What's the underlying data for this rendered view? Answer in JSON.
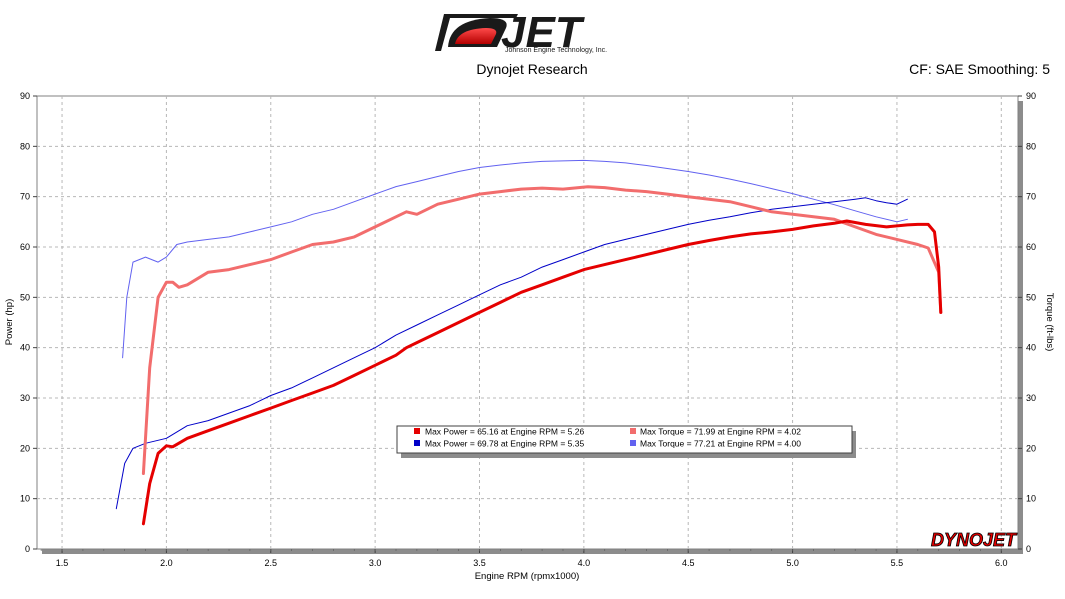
{
  "header": {
    "logo_text": "JET",
    "logo_subtext": "Johnson Engine Technology, Inc.",
    "title": "Dynojet Research",
    "settings_text": "CF: SAE Smoothing: 5"
  },
  "footer": {
    "brand_text": "DYNOJET"
  },
  "chart_data": {
    "type": "line",
    "xlabel": "Engine RPM (rpmx1000)",
    "ylabel_left": "Power (hp)",
    "ylabel_right": "Torque (ft-lbs)",
    "xlim": [
      1.38,
      6.08
    ],
    "ylim": [
      0,
      90
    ],
    "x_ticks": [
      "1.5",
      "2.0",
      "2.5",
      "3.0",
      "3.5",
      "4.0",
      "4.5",
      "5.0",
      "5.5",
      "6.0"
    ],
    "y_ticks": [
      "0",
      "10",
      "20",
      "30",
      "40",
      "50",
      "60",
      "70",
      "80",
      "90"
    ],
    "grid": true,
    "legend_position": "center-bottom",
    "series": [
      {
        "name": "Max Power = 65.16 at Engine RPM = 5.26",
        "color": "#e50000",
        "width": 3,
        "x": [
          1.89,
          1.92,
          1.96,
          2.0,
          2.03,
          2.1,
          2.2,
          2.3,
          2.4,
          2.5,
          2.6,
          2.7,
          2.8,
          2.9,
          3.0,
          3.1,
          3.15,
          3.2,
          3.3,
          3.4,
          3.5,
          3.6,
          3.7,
          3.8,
          3.9,
          4.0,
          4.1,
          4.2,
          4.3,
          4.4,
          4.5,
          4.6,
          4.7,
          4.8,
          4.9,
          5.0,
          5.1,
          5.2,
          5.26,
          5.35,
          5.45,
          5.55,
          5.6,
          5.65,
          5.68,
          5.7,
          5.71
        ],
        "values": [
          5,
          13,
          19,
          20.5,
          20.3,
          22,
          23.5,
          25,
          26.5,
          28,
          29.5,
          31,
          32.5,
          34.5,
          36.5,
          38.5,
          40,
          41,
          43,
          45,
          47,
          49,
          51,
          52.5,
          54,
          55.5,
          56.5,
          57.5,
          58.5,
          59.5,
          60.5,
          61.3,
          62,
          62.6,
          63,
          63.5,
          64.2,
          64.7,
          65.16,
          64.5,
          64.0,
          64.4,
          64.5,
          64.5,
          63,
          56,
          47
        ]
      },
      {
        "name": "Max Power = 69.78 at Engine RPM = 5.35",
        "color": "#0000c8",
        "width": 1,
        "x": [
          1.76,
          1.8,
          1.84,
          1.9,
          2.0,
          2.1,
          2.2,
          2.3,
          2.4,
          2.5,
          2.6,
          2.7,
          2.8,
          2.9,
          3.0,
          3.1,
          3.2,
          3.3,
          3.4,
          3.5,
          3.6,
          3.7,
          3.8,
          3.9,
          4.0,
          4.1,
          4.2,
          4.3,
          4.4,
          4.5,
          4.6,
          4.7,
          4.8,
          4.9,
          5.0,
          5.1,
          5.2,
          5.3,
          5.35,
          5.4,
          5.45,
          5.5,
          5.55
        ],
        "values": [
          8,
          17,
          20,
          21,
          22,
          24.5,
          25.5,
          27,
          28.5,
          30.5,
          32,
          34,
          36,
          38,
          40,
          42.5,
          44.5,
          46.5,
          48.5,
          50.5,
          52.5,
          54,
          56,
          57.5,
          59,
          60.5,
          61.5,
          62.5,
          63.5,
          64.5,
          65.3,
          66,
          66.8,
          67.5,
          68,
          68.5,
          69,
          69.5,
          69.78,
          69.2,
          68.8,
          68.5,
          69.5
        ]
      },
      {
        "name": "Max Torque = 71.99 at Engine RPM = 4.02",
        "color": "#f26d6d",
        "width": 3,
        "x": [
          1.89,
          1.92,
          1.96,
          2.0,
          2.03,
          2.06,
          2.1,
          2.2,
          2.3,
          2.4,
          2.5,
          2.6,
          2.7,
          2.8,
          2.9,
          3.0,
          3.1,
          3.15,
          3.2,
          3.3,
          3.4,
          3.5,
          3.6,
          3.7,
          3.8,
          3.9,
          4.0,
          4.02,
          4.1,
          4.2,
          4.3,
          4.4,
          4.5,
          4.6,
          4.7,
          4.8,
          4.9,
          5.0,
          5.1,
          5.2,
          5.3,
          5.4,
          5.5,
          5.6,
          5.65,
          5.7,
          5.71
        ],
        "values": [
          15,
          36,
          50,
          53,
          53,
          52,
          52.5,
          55,
          55.5,
          56.5,
          57.5,
          59,
          60.5,
          61,
          62,
          64,
          66,
          67,
          66.5,
          68.5,
          69.5,
          70.5,
          71,
          71.5,
          71.7,
          71.5,
          71.9,
          71.99,
          71.8,
          71.3,
          71,
          70.5,
          70,
          69.5,
          69,
          68,
          67,
          66.5,
          66,
          65.5,
          64,
          62.5,
          61.5,
          60.5,
          59.8,
          55,
          47
        ]
      },
      {
        "name": "Max Torque = 77.21 at Engine RPM = 4.00",
        "color": "#6262f0",
        "width": 1,
        "x": [
          1.79,
          1.81,
          1.84,
          1.9,
          1.96,
          2.0,
          2.05,
          2.1,
          2.2,
          2.3,
          2.4,
          2.5,
          2.6,
          2.7,
          2.8,
          2.9,
          3.0,
          3.1,
          3.2,
          3.3,
          3.4,
          3.5,
          3.6,
          3.7,
          3.8,
          3.9,
          4.0,
          4.1,
          4.2,
          4.3,
          4.4,
          4.5,
          4.6,
          4.7,
          4.8,
          4.9,
          5.0,
          5.1,
          5.2,
          5.3,
          5.4,
          5.5,
          5.55
        ],
        "values": [
          38,
          50,
          57,
          58,
          57,
          58,
          60.5,
          61,
          61.5,
          62,
          63,
          64,
          65,
          66.5,
          67.5,
          69,
          70.5,
          72,
          73,
          74,
          75,
          75.8,
          76.3,
          76.7,
          77,
          77.1,
          77.21,
          77,
          76.7,
          76.2,
          75.6,
          75,
          74.3,
          73.5,
          72.6,
          71.6,
          70.6,
          69.5,
          68.4,
          67.2,
          66,
          65,
          65.5
        ]
      }
    ]
  }
}
